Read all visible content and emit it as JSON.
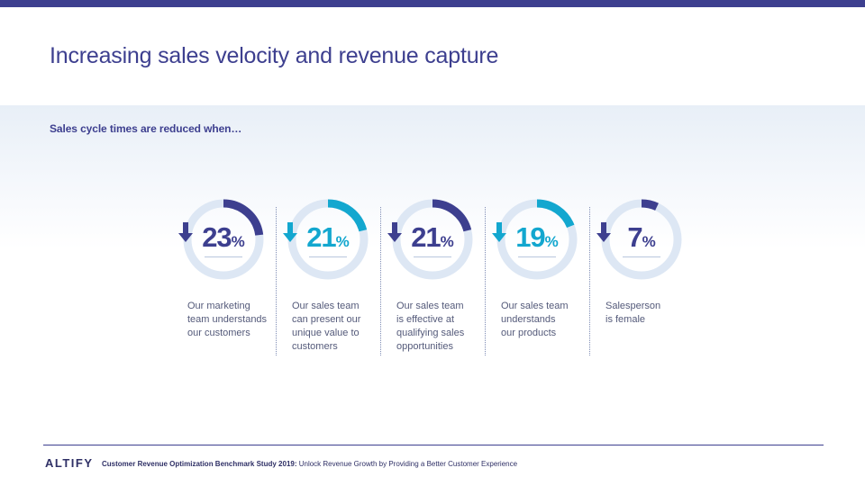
{
  "colors": {
    "top_bar": "#3d3f8f",
    "dark": "#3d3f8f",
    "teal": "#13a7cf",
    "track": "#dde7f4"
  },
  "title": "Increasing sales velocity and revenue capture",
  "subtitle": "Sales cycle times are reduced when…",
  "chart_data": {
    "type": "donut",
    "title": "Sales cycle times are reduced when…",
    "unit": "%",
    "direction": "decrease",
    "series": [
      {
        "value": 23,
        "value_text": "23",
        "label_lines": [
          "Our marketing",
          "team understands",
          "our customers"
        ],
        "color": "dark"
      },
      {
        "value": 21,
        "value_text": "21",
        "label_lines": [
          "Our sales team",
          "can present our",
          "unique value to",
          "customers"
        ],
        "color": "teal"
      },
      {
        "value": 21,
        "value_text": "21",
        "label_lines": [
          "Our sales team",
          "is effective at",
          "qualifying sales",
          "opportunities"
        ],
        "color": "dark"
      },
      {
        "value": 19,
        "value_text": "19",
        "label_lines": [
          "Our sales team",
          "understands",
          "our products"
        ],
        "color": "teal"
      },
      {
        "value": 7,
        "value_text": "7",
        "label_lines": [
          "Salesperson",
          "is female"
        ],
        "color": "dark"
      }
    ],
    "pct_symbol": "%"
  },
  "footer": {
    "logo": "ALTIFY",
    "study_bold": "Customer Revenue Optimization Benchmark Study 2019:",
    "study_rest": " Unlock Revenue Growth by Providing a Better Customer Experience"
  }
}
